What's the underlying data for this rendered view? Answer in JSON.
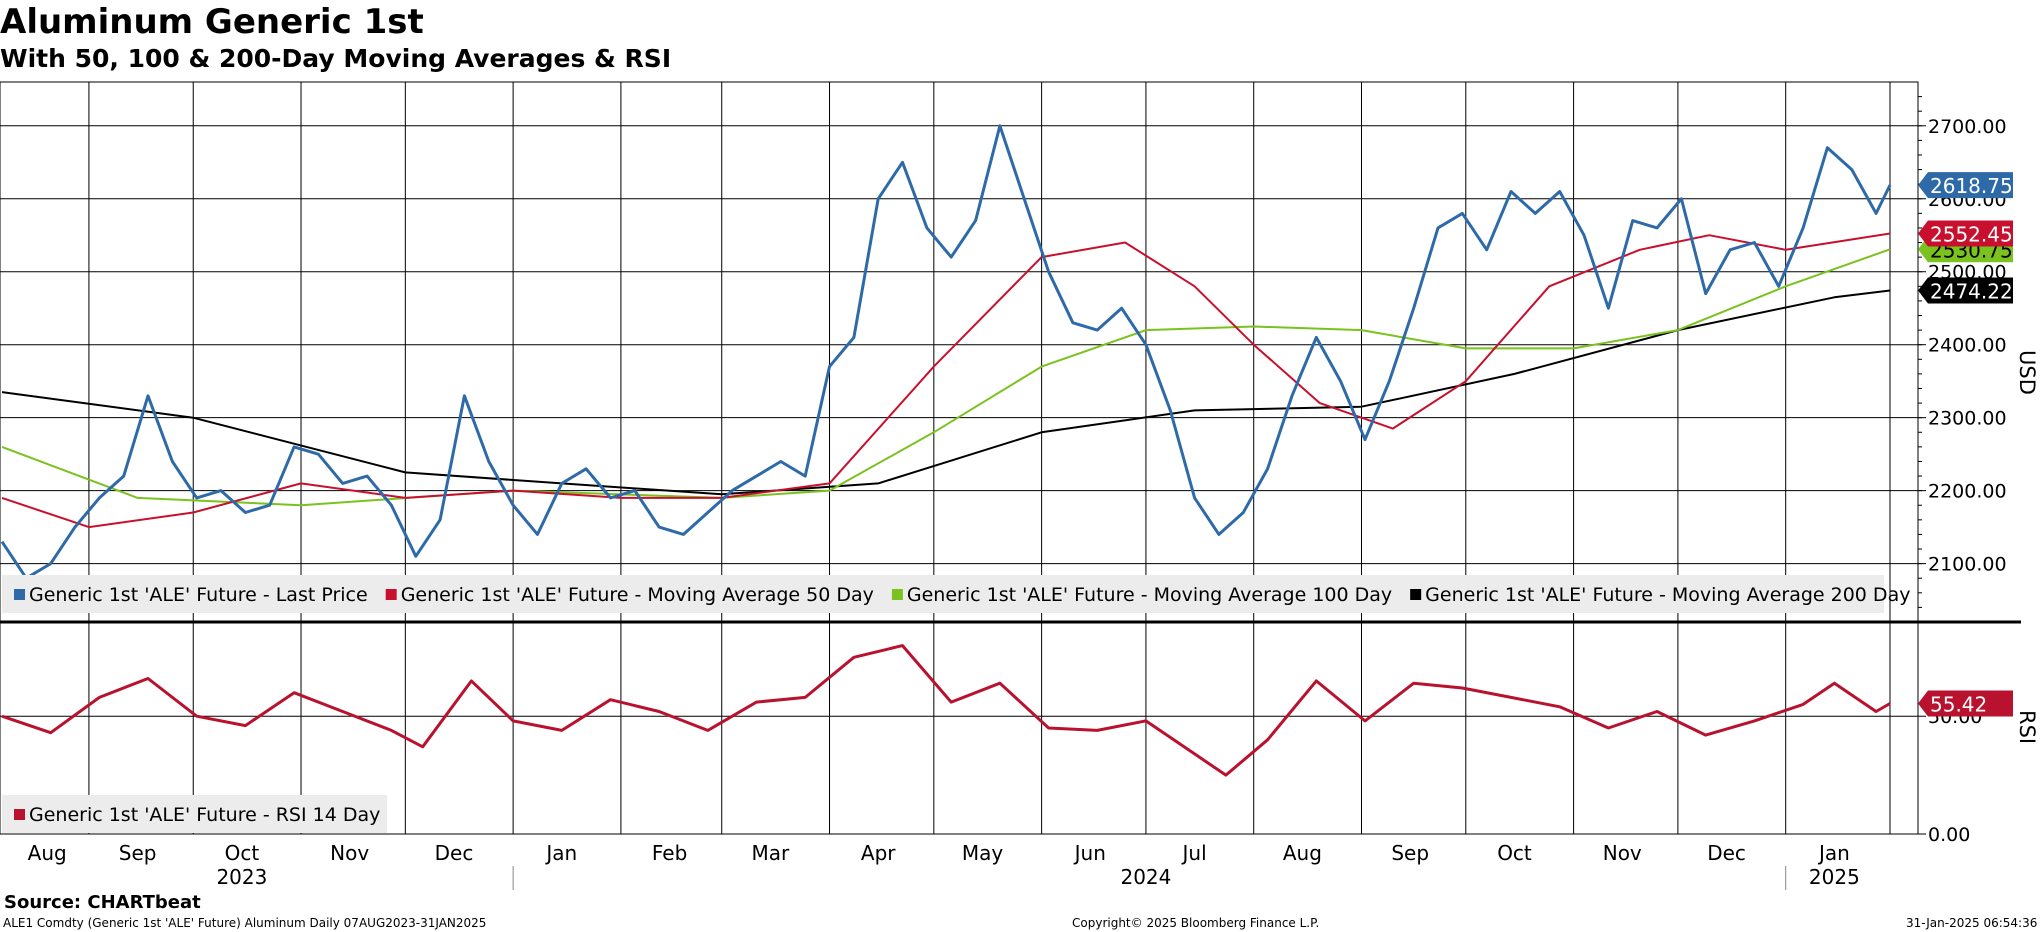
{
  "header": {
    "title": "Aluminum Generic 1st",
    "subtitle": "With 50, 100 & 200-Day Moving Averages & RSI"
  },
  "footer": {
    "source": "Source: CHARTbeat",
    "ticker_info": "ALE1 Comdty (Generic 1st 'ALE' Future) Aluminum  Daily 07AUG2023-31JAN2025",
    "copyright": "Copyright© 2025 Bloomberg Finance L.P.",
    "timestamp": "31-Jan-2025 06:54:36"
  },
  "chart_data": [
    {
      "type": "line",
      "panel": "price",
      "ylabel": "USD",
      "ylim": [
        2020,
        2760
      ],
      "y_ticks": [
        "2100.00",
        "2200.00",
        "2300.00",
        "2400.00",
        "2500.00",
        "2600.00",
        "2700.00"
      ],
      "x_ticks": [
        "Aug",
        "Sep",
        "Oct",
        "Nov",
        "Dec",
        "Jan",
        "Feb",
        "Mar",
        "Apr",
        "May",
        "Jun",
        "Jul",
        "Aug",
        "Sep",
        "Oct",
        "Nov",
        "Dec",
        "Jan"
      ],
      "x_year_labels": [
        "2023",
        "2024",
        "2025"
      ],
      "grid": true,
      "legend_position": "bottom",
      "x_range": [
        "2023-08-07",
        "2025-01-31"
      ],
      "series": [
        {
          "name": "Generic 1st 'ALE' Future - Last Price",
          "color": "#2e6aa8",
          "last_value": "2618.75",
          "points": [
            [
              "2023-08-07",
              2130
            ],
            [
              "2023-08-14",
              2080
            ],
            [
              "2023-08-21",
              2100
            ],
            [
              "2023-08-28",
              2150
            ],
            [
              "2023-09-04",
              2190
            ],
            [
              "2023-09-11",
              2220
            ],
            [
              "2023-09-18",
              2330
            ],
            [
              "2023-09-25",
              2240
            ],
            [
              "2023-10-02",
              2190
            ],
            [
              "2023-10-09",
              2200
            ],
            [
              "2023-10-16",
              2170
            ],
            [
              "2023-10-23",
              2180
            ],
            [
              "2023-10-30",
              2260
            ],
            [
              "2023-11-06",
              2250
            ],
            [
              "2023-11-13",
              2210
            ],
            [
              "2023-11-20",
              2220
            ],
            [
              "2023-11-27",
              2180
            ],
            [
              "2023-12-04",
              2110
            ],
            [
              "2023-12-11",
              2160
            ],
            [
              "2023-12-18",
              2330
            ],
            [
              "2023-12-25",
              2240
            ],
            [
              "2024-01-01",
              2180
            ],
            [
              "2024-01-08",
              2140
            ],
            [
              "2024-01-15",
              2210
            ],
            [
              "2024-01-22",
              2230
            ],
            [
              "2024-01-29",
              2190
            ],
            [
              "2024-02-05",
              2200
            ],
            [
              "2024-02-12",
              2150
            ],
            [
              "2024-02-19",
              2140
            ],
            [
              "2024-02-26",
              2170
            ],
            [
              "2024-03-04",
              2200
            ],
            [
              "2024-03-11",
              2220
            ],
            [
              "2024-03-18",
              2240
            ],
            [
              "2024-03-25",
              2220
            ],
            [
              "2024-04-01",
              2370
            ],
            [
              "2024-04-08",
              2410
            ],
            [
              "2024-04-15",
              2600
            ],
            [
              "2024-04-22",
              2650
            ],
            [
              "2024-04-29",
              2560
            ],
            [
              "2024-05-06",
              2520
            ],
            [
              "2024-05-13",
              2570
            ],
            [
              "2024-05-20",
              2700
            ],
            [
              "2024-05-27",
              2600
            ],
            [
              "2024-06-03",
              2500
            ],
            [
              "2024-06-10",
              2430
            ],
            [
              "2024-06-17",
              2420
            ],
            [
              "2024-06-24",
              2450
            ],
            [
              "2024-07-01",
              2400
            ],
            [
              "2024-07-08",
              2310
            ],
            [
              "2024-07-15",
              2190
            ],
            [
              "2024-07-22",
              2140
            ],
            [
              "2024-07-29",
              2170
            ],
            [
              "2024-08-05",
              2230
            ],
            [
              "2024-08-12",
              2330
            ],
            [
              "2024-08-19",
              2410
            ],
            [
              "2024-08-26",
              2350
            ],
            [
              "2024-09-02",
              2270
            ],
            [
              "2024-09-09",
              2350
            ],
            [
              "2024-09-16",
              2450
            ],
            [
              "2024-09-23",
              2560
            ],
            [
              "2024-09-30",
              2580
            ],
            [
              "2024-10-07",
              2530
            ],
            [
              "2024-10-14",
              2610
            ],
            [
              "2024-10-21",
              2580
            ],
            [
              "2024-10-28",
              2610
            ],
            [
              "2024-11-04",
              2550
            ],
            [
              "2024-11-11",
              2450
            ],
            [
              "2024-11-18",
              2570
            ],
            [
              "2024-11-25",
              2560
            ],
            [
              "2024-12-02",
              2600
            ],
            [
              "2024-12-09",
              2470
            ],
            [
              "2024-12-16",
              2530
            ],
            [
              "2024-12-23",
              2540
            ],
            [
              "2024-12-30",
              2480
            ],
            [
              "2025-01-06",
              2560
            ],
            [
              "2025-01-13",
              2670
            ],
            [
              "2025-01-20",
              2640
            ],
            [
              "2025-01-27",
              2580
            ],
            [
              "2025-01-31",
              2618.75
            ]
          ]
        },
        {
          "name": "Generic 1st 'ALE' Future - Moving Average 50 Day",
          "color": "#c8102e",
          "last_value": "2552.45",
          "points": [
            [
              "2023-08-07",
              2190
            ],
            [
              "2023-09-01",
              2150
            ],
            [
              "2023-10-01",
              2170
            ],
            [
              "2023-11-01",
              2210
            ],
            [
              "2023-12-01",
              2190
            ],
            [
              "2024-01-01",
              2200
            ],
            [
              "2024-02-01",
              2190
            ],
            [
              "2024-03-01",
              2190
            ],
            [
              "2024-04-01",
              2210
            ],
            [
              "2024-05-01",
              2370
            ],
            [
              "2024-06-01",
              2520
            ],
            [
              "2024-06-25",
              2540
            ],
            [
              "2024-07-15",
              2480
            ],
            [
              "2024-08-01",
              2400
            ],
            [
              "2024-08-20",
              2320
            ],
            [
              "2024-09-10",
              2285
            ],
            [
              "2024-10-01",
              2350
            ],
            [
              "2024-10-25",
              2480
            ],
            [
              "2024-11-20",
              2530
            ],
            [
              "2024-12-10",
              2550
            ],
            [
              "2025-01-01",
              2530
            ],
            [
              "2025-01-31",
              2552.45
            ]
          ]
        },
        {
          "name": "Generic 1st 'ALE' Future - Moving Average 100 Day",
          "color": "#7ac21e",
          "last_value": "2530.75",
          "points": [
            [
              "2023-08-07",
              2260
            ],
            [
              "2023-09-15",
              2190
            ],
            [
              "2023-11-01",
              2180
            ],
            [
              "2024-01-01",
              2200
            ],
            [
              "2024-03-01",
              2190
            ],
            [
              "2024-04-01",
              2200
            ],
            [
              "2024-05-01",
              2280
            ],
            [
              "2024-06-01",
              2370
            ],
            [
              "2024-07-01",
              2420
            ],
            [
              "2024-08-01",
              2425
            ],
            [
              "2024-09-01",
              2420
            ],
            [
              "2024-10-01",
              2395
            ],
            [
              "2024-11-01",
              2395
            ],
            [
              "2024-12-01",
              2420
            ],
            [
              "2025-01-01",
              2480
            ],
            [
              "2025-01-31",
              2530.75
            ]
          ]
        },
        {
          "name": "Generic 1st 'ALE' Future - Moving Average 200 Day",
          "color": "#000000",
          "last_value": "2474.22",
          "points": [
            [
              "2023-08-07",
              2335
            ],
            [
              "2023-10-01",
              2300
            ],
            [
              "2023-12-01",
              2225
            ],
            [
              "2024-01-15",
              2210
            ],
            [
              "2024-03-01",
              2195
            ],
            [
              "2024-04-15",
              2210
            ],
            [
              "2024-06-01",
              2280
            ],
            [
              "2024-07-15",
              2310
            ],
            [
              "2024-09-01",
              2315
            ],
            [
              "2024-10-15",
              2360
            ],
            [
              "2024-12-01",
              2420
            ],
            [
              "2025-01-15",
              2465
            ],
            [
              "2025-01-31",
              2474.22
            ]
          ]
        }
      ]
    },
    {
      "type": "line",
      "panel": "rsi",
      "ylabel": "RSI",
      "ylim": [
        0,
        90
      ],
      "y_ticks": [
        "0.00",
        "50.00"
      ],
      "series": [
        {
          "name": "Generic 1st 'ALE' Future - RSI 14 Day",
          "color": "#b8122e",
          "last_value": "55.42",
          "points": [
            [
              "2023-08-07",
              50
            ],
            [
              "2023-08-21",
              43
            ],
            [
              "2023-09-04",
              58
            ],
            [
              "2023-09-18",
              66
            ],
            [
              "2023-10-02",
              50
            ],
            [
              "2023-10-16",
              46
            ],
            [
              "2023-10-30",
              60
            ],
            [
              "2023-11-13",
              52
            ],
            [
              "2023-11-27",
              44
            ],
            [
              "2023-12-06",
              37
            ],
            [
              "2023-12-20",
              65
            ],
            [
              "2024-01-01",
              48
            ],
            [
              "2024-01-15",
              44
            ],
            [
              "2024-01-29",
              57
            ],
            [
              "2024-02-12",
              52
            ],
            [
              "2024-02-26",
              44
            ],
            [
              "2024-03-11",
              56
            ],
            [
              "2024-03-25",
              58
            ],
            [
              "2024-04-08",
              75
            ],
            [
              "2024-04-22",
              80
            ],
            [
              "2024-05-06",
              56
            ],
            [
              "2024-05-20",
              64
            ],
            [
              "2024-06-03",
              45
            ],
            [
              "2024-06-17",
              44
            ],
            [
              "2024-07-01",
              48
            ],
            [
              "2024-07-15",
              34
            ],
            [
              "2024-07-24",
              25
            ],
            [
              "2024-08-05",
              40
            ],
            [
              "2024-08-19",
              65
            ],
            [
              "2024-09-02",
              48
            ],
            [
              "2024-09-16",
              64
            ],
            [
              "2024-09-30",
              62
            ],
            [
              "2024-10-14",
              58
            ],
            [
              "2024-10-28",
              54
            ],
            [
              "2024-11-11",
              45
            ],
            [
              "2024-11-25",
              52
            ],
            [
              "2024-12-09",
              42
            ],
            [
              "2024-12-23",
              48
            ],
            [
              "2025-01-06",
              55
            ],
            [
              "2025-01-15",
              64
            ],
            [
              "2025-01-27",
              52
            ],
            [
              "2025-01-31",
              55.42
            ]
          ]
        }
      ]
    }
  ]
}
